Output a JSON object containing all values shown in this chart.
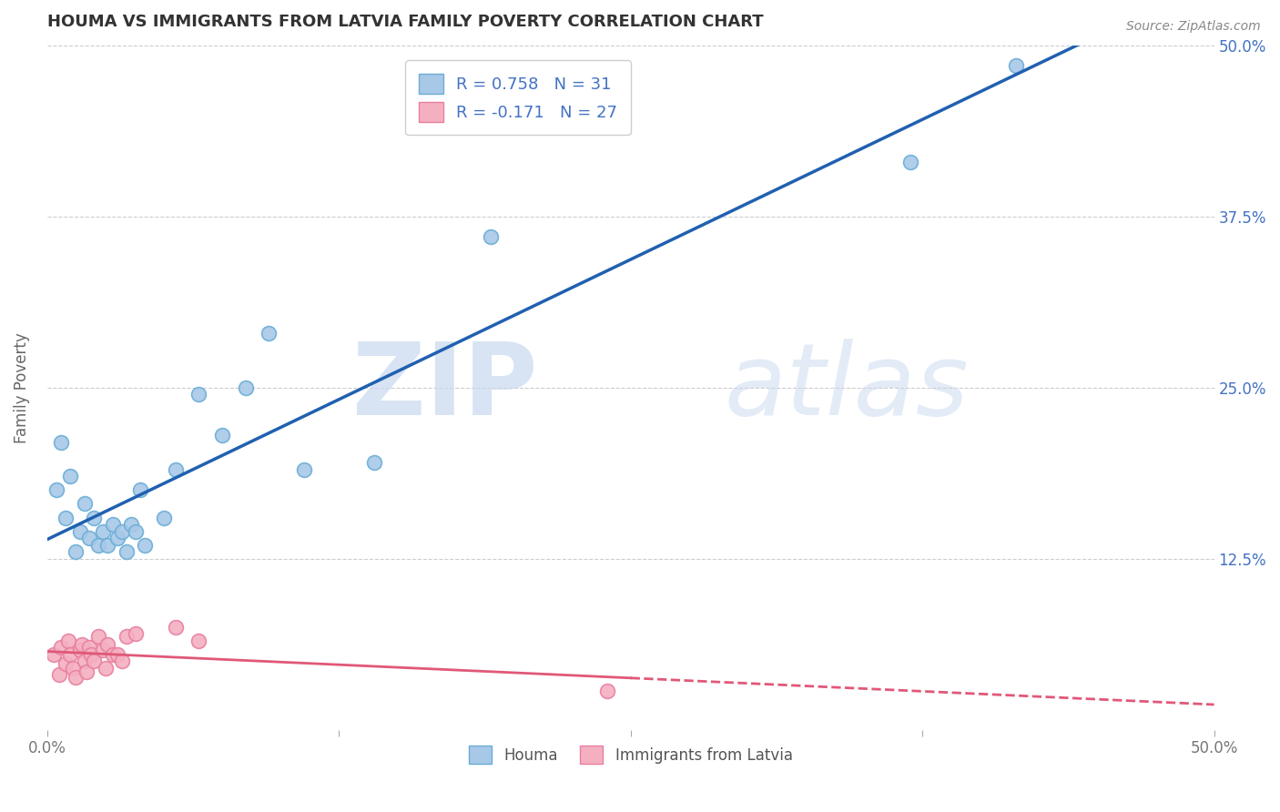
{
  "title": "HOUMA VS IMMIGRANTS FROM LATVIA FAMILY POVERTY CORRELATION CHART",
  "source": "Source: ZipAtlas.com",
  "ylabel": "Family Poverty",
  "xlim": [
    0,
    0.5
  ],
  "ylim": [
    0,
    0.5
  ],
  "xtick_labels": [
    "0.0%",
    "",
    "",
    "",
    "50.0%"
  ],
  "xtick_vals": [
    0.0,
    0.125,
    0.25,
    0.375,
    0.5
  ],
  "ytick_labels": [
    "12.5%",
    "25.0%",
    "37.5%",
    "50.0%"
  ],
  "ytick_vals": [
    0.125,
    0.25,
    0.375,
    0.5
  ],
  "houma_color": "#a8c8e8",
  "houma_edge_color": "#6aaed6",
  "latvia_color": "#f4b0c0",
  "latvia_edge_color": "#e87fa0",
  "houma_line_color": "#2060b0",
  "latvia_line_color": "#e05878",
  "houma_R": 0.758,
  "houma_N": 31,
  "latvia_R": -0.171,
  "latvia_N": 27,
  "legend_text_color": "#4472c4",
  "background_color": "#ffffff",
  "grid_color": "#c8c8c8",
  "houma_x": [
    0.004,
    0.006,
    0.008,
    0.01,
    0.012,
    0.014,
    0.016,
    0.018,
    0.02,
    0.022,
    0.024,
    0.026,
    0.028,
    0.03,
    0.032,
    0.034,
    0.036,
    0.038,
    0.04,
    0.042,
    0.05,
    0.055,
    0.065,
    0.075,
    0.085,
    0.095,
    0.11,
    0.14,
    0.19,
    0.37,
    0.415
  ],
  "houma_y": [
    0.175,
    0.21,
    0.155,
    0.185,
    0.13,
    0.145,
    0.165,
    0.14,
    0.155,
    0.135,
    0.145,
    0.135,
    0.15,
    0.14,
    0.145,
    0.13,
    0.15,
    0.145,
    0.175,
    0.135,
    0.155,
    0.19,
    0.245,
    0.215,
    0.25,
    0.29,
    0.19,
    0.195,
    0.36,
    0.415,
    0.485
  ],
  "latvia_x": [
    0.003,
    0.005,
    0.006,
    0.008,
    0.009,
    0.01,
    0.011,
    0.012,
    0.014,
    0.015,
    0.016,
    0.017,
    0.018,
    0.019,
    0.02,
    0.022,
    0.024,
    0.025,
    0.026,
    0.028,
    0.03,
    0.032,
    0.034,
    0.038,
    0.055,
    0.065,
    0.24
  ],
  "latvia_y": [
    0.055,
    0.04,
    0.06,
    0.048,
    0.065,
    0.055,
    0.045,
    0.038,
    0.058,
    0.062,
    0.05,
    0.042,
    0.06,
    0.055,
    0.05,
    0.068,
    0.058,
    0.045,
    0.062,
    0.055,
    0.055,
    0.05,
    0.068,
    0.07,
    0.075,
    0.065,
    0.028
  ]
}
